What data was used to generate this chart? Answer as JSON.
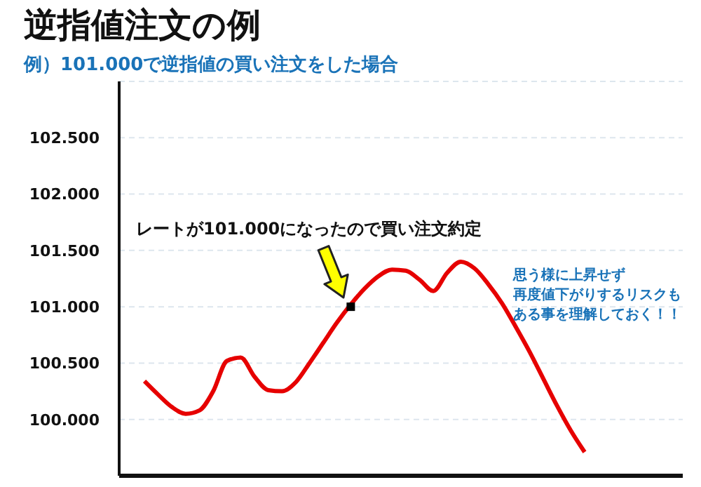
{
  "chart_data": {
    "type": "line",
    "title": "逆指値注文の例",
    "subtitle": "例）101.000で逆指値の買い注文をした場合",
    "annotations": [
      "レートが101.000になったので買い注文約定",
      "思う様に上昇せず",
      "再度値下がりするリスクも",
      "ある事を理解しておく！！"
    ],
    "categories": [
      null,
      null,
      null,
      null,
      null,
      null,
      null,
      null,
      null,
      null,
      null,
      null,
      null,
      null,
      null,
      null,
      null,
      null,
      null,
      null,
      null,
      null,
      null,
      null,
      null,
      null,
      null,
      null,
      null,
      null,
      null,
      null,
      null
    ],
    "series": [
      {
        "color": "#e60000",
        "marker": "none",
        "values": [
          100.34,
          100.22,
          100.11,
          100.05,
          100.08,
          100.25,
          100.52,
          100.55,
          100.38,
          100.26,
          100.25,
          100.33,
          100.5,
          100.68,
          100.86,
          101.02,
          101.16,
          101.27,
          101.33,
          101.32,
          101.24,
          101.14,
          101.3,
          101.4,
          101.34,
          101.2,
          101.03,
          100.82,
          100.6,
          100.36,
          100.12,
          99.9,
          99.71
        ]
      },
      {
        "type": "scatter",
        "color": "#000000",
        "marker": "square",
        "values": [
          null,
          null,
          null,
          null,
          null,
          null,
          null,
          null,
          null,
          null,
          null,
          null,
          null,
          null,
          null,
          101.0,
          null,
          null,
          null,
          null,
          null,
          null,
          null,
          null,
          null,
          null,
          null,
          null,
          null,
          null,
          null,
          null,
          null
        ]
      }
    ],
    "ylim": [
      99.5,
      103.0
    ],
    "yticks": [
      {
        "value": 100,
        "label": "100.000"
      },
      {
        "value": 100.5,
        "label": "100.500"
      },
      {
        "value": 101,
        "label": "101.000"
      },
      {
        "value": 101.5,
        "label": "101.500"
      },
      {
        "value": 102,
        "label": "102.000"
      },
      {
        "value": 102.5,
        "label": "102.500"
      }
    ],
    "grid": "y",
    "tick_labels": "y",
    "legend": false
  }
}
